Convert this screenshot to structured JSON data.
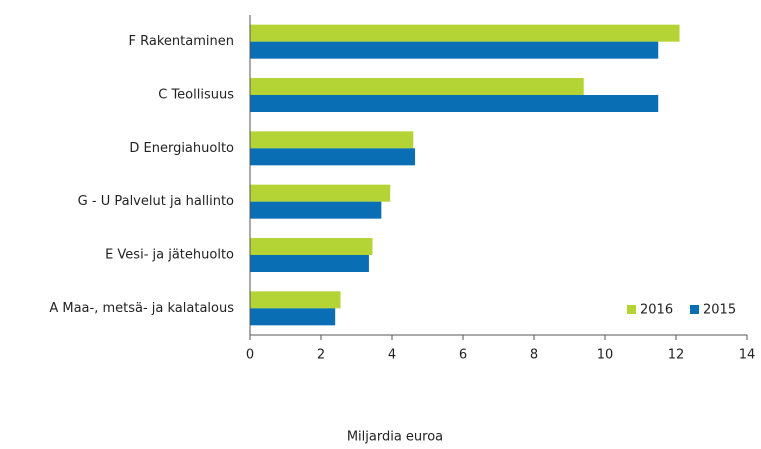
{
  "chart_data": {
    "type": "hbar",
    "categories": [
      "F Rakentaminen",
      "C Teollisuus",
      "D Energiahuolto",
      "G - U Palvelut ja hallinto",
      "E Vesi- ja jätehuolto",
      "A Maa-, metsä- ja kalatalous"
    ],
    "series": [
      {
        "name": "2016",
        "color": "#b4d334",
        "values": [
          12.1,
          9.4,
          4.6,
          3.95,
          3.45,
          2.55
        ]
      },
      {
        "name": "2015",
        "color": "#0a6eb4",
        "values": [
          11.5,
          11.5,
          4.65,
          3.7,
          3.35,
          2.4
        ]
      }
    ],
    "xlabel": "Miljardia euroa",
    "xlim": [
      0,
      14
    ],
    "xticks": [
      0,
      2,
      4,
      6,
      8,
      10,
      12,
      14
    ],
    "grid": false,
    "legend": "lower right"
  }
}
